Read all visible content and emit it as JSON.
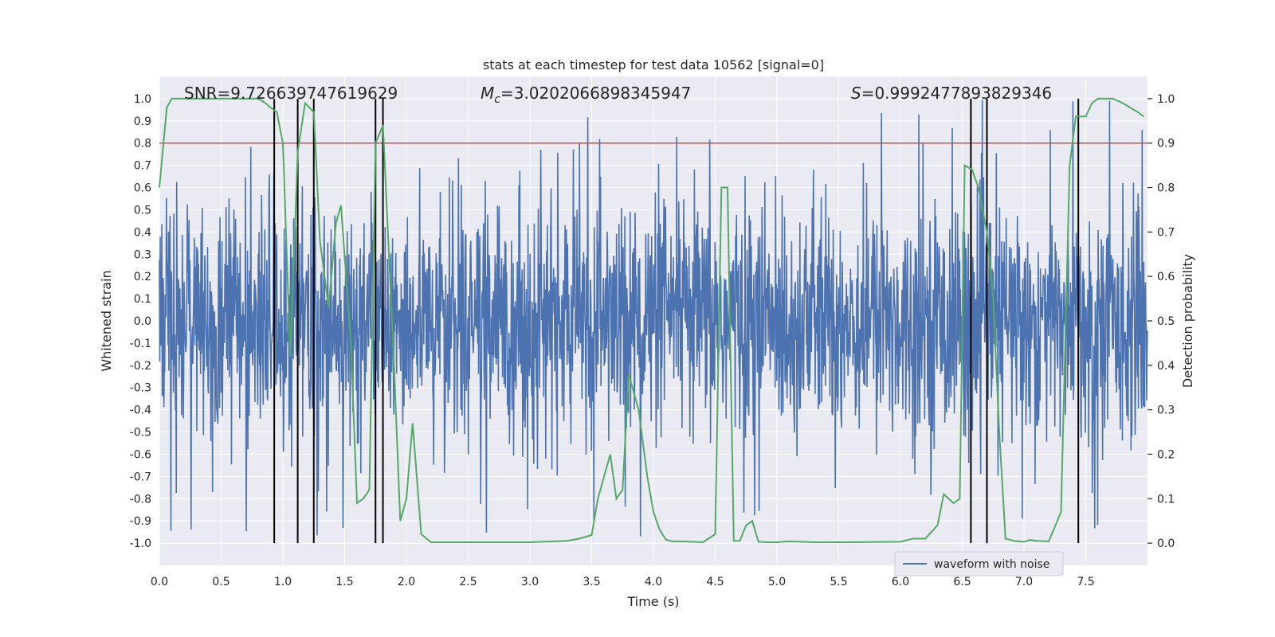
{
  "chart_data": {
    "type": "line",
    "title": "stats at each timestep for test data 10562 [signal=0]",
    "xlabel": "Time (s)",
    "ylabel": "Whitened strain",
    "y2label": "Detection probability",
    "xlim": [
      0.0,
      8.0
    ],
    "ylim": [
      -1.1,
      1.1
    ],
    "y2lim": [
      -0.05,
      1.05
    ],
    "xticks": [
      0.0,
      0.5,
      1.0,
      1.5,
      2.0,
      2.5,
      3.0,
      3.5,
      4.0,
      4.5,
      5.0,
      5.5,
      6.0,
      6.5,
      7.0,
      7.5
    ],
    "xtick_labels": [
      "0.0",
      "0.5",
      "1.0",
      "1.5",
      "2.0",
      "2.5",
      "3.0",
      "3.5",
      "4.0",
      "4.5",
      "5.0",
      "5.5",
      "6.0",
      "6.5",
      "7.0",
      "7.5"
    ],
    "yticks": [
      -1.0,
      -0.9,
      -0.8,
      -0.7,
      -0.6,
      -0.5,
      -0.4,
      -0.3,
      -0.2,
      -0.1,
      0.0,
      0.1,
      0.2,
      0.3,
      0.4,
      0.5,
      0.6,
      0.7,
      0.8,
      0.9,
      1.0
    ],
    "ytick_labels": [
      "-1.0",
      "-0.9",
      "-0.8",
      "-0.7",
      "-0.6",
      "-0.5",
      "-0.4",
      "-0.3",
      "-0.2",
      "-0.1",
      "0.0",
      "0.1",
      "0.2",
      "0.3",
      "0.4",
      "0.5",
      "0.6",
      "0.7",
      "0.8",
      "0.9",
      "1.0"
    ],
    "y2ticks": [
      0.0,
      0.1,
      0.2,
      0.3,
      0.4,
      0.5,
      0.6,
      0.7,
      0.8,
      0.9,
      1.0
    ],
    "y2tick_labels": [
      "0.0",
      "0.1",
      "0.2",
      "0.3",
      "0.4",
      "0.5",
      "0.6",
      "0.7",
      "0.8",
      "0.9",
      "1.0"
    ],
    "annotations": [
      {
        "text": "SNR=9.726639747619629",
        "x": 0.2
      },
      {
        "text": "=3.0202066898345947",
        "symbol": "M",
        "subscript": "c",
        "x": 2.6
      },
      {
        "text": "=0.9992477893829346",
        "symbol": "S",
        "x": 5.6
      }
    ],
    "threshold": {
      "value": 0.9,
      "axis": "y2",
      "color": "#c44e52"
    },
    "vlines": [
      0.93,
      1.12,
      1.25,
      1.75,
      1.81,
      6.57,
      6.7,
      7.44
    ],
    "legend": {
      "label": "waveform with noise",
      "loc": "lower right"
    },
    "series": [
      {
        "name": "waveform with noise",
        "axis": "y",
        "color": "#4c72b0",
        "description": "dense noisy whitened strain signal, envelope roughly -0.6..0.6 with spikes to about +/-1.0"
      },
      {
        "name": "detection probability",
        "axis": "y2",
        "color": "#55a868",
        "x": [
          0.0,
          0.06,
          0.1,
          0.2,
          0.4,
          0.6,
          0.8,
          0.86,
          0.9,
          0.95,
          1.0,
          1.06,
          1.12,
          1.18,
          1.25,
          1.3,
          1.37,
          1.43,
          1.47,
          1.55,
          1.6,
          1.65,
          1.7,
          1.75,
          1.81,
          1.9,
          1.95,
          2.0,
          2.05,
          2.12,
          2.2,
          2.5,
          3.0,
          3.3,
          3.4,
          3.5,
          3.55,
          3.65,
          3.7,
          3.75,
          3.8,
          3.88,
          3.95,
          4.0,
          4.05,
          4.1,
          4.15,
          4.2,
          4.3,
          4.4,
          4.5,
          4.55,
          4.6,
          4.65,
          4.7,
          4.75,
          4.8,
          4.85,
          4.92,
          5.0,
          5.1,
          5.3,
          5.6,
          6.0,
          6.1,
          6.2,
          6.3,
          6.35,
          6.43,
          6.48,
          6.52,
          6.58,
          6.63,
          6.7,
          6.75,
          6.8,
          6.85,
          6.92,
          7.0,
          7.05,
          7.1,
          7.2,
          7.3,
          7.37,
          7.42,
          7.5,
          7.55,
          7.6,
          7.65,
          7.72,
          7.8,
          7.86,
          7.92,
          7.97
        ],
        "values": [
          0.8,
          0.98,
          1.0,
          1.0,
          1.0,
          1.0,
          1.0,
          0.99,
          0.98,
          0.97,
          0.9,
          0.42,
          0.88,
          0.99,
          0.97,
          0.68,
          0.53,
          0.72,
          0.76,
          0.45,
          0.09,
          0.1,
          0.12,
          0.9,
          0.94,
          0.4,
          0.05,
          0.1,
          0.27,
          0.02,
          0.002,
          0.002,
          0.002,
          0.005,
          0.01,
          0.018,
          0.1,
          0.2,
          0.1,
          0.12,
          0.38,
          0.3,
          0.15,
          0.07,
          0.03,
          0.008,
          0.004,
          0.004,
          0.003,
          0.002,
          0.02,
          0.8,
          0.8,
          0.005,
          0.005,
          0.04,
          0.05,
          0.003,
          0.002,
          0.002,
          0.004,
          0.002,
          0.002,
          0.003,
          0.01,
          0.01,
          0.04,
          0.11,
          0.09,
          0.1,
          0.85,
          0.84,
          0.8,
          0.7,
          0.55,
          0.25,
          0.01,
          0.005,
          0.003,
          0.007,
          0.005,
          0.004,
          0.07,
          0.85,
          0.96,
          0.96,
          0.99,
          1.0,
          1.0,
          1.0,
          0.99,
          0.98,
          0.97,
          0.96
        ]
      }
    ]
  }
}
